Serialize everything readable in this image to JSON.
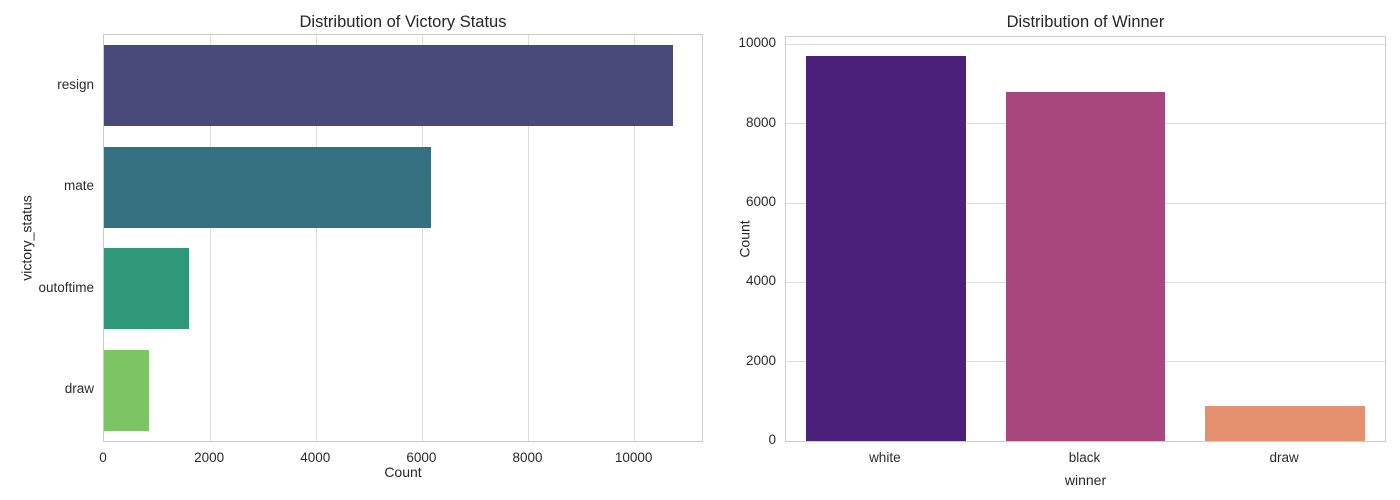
{
  "figure": {
    "background": "#ffffff",
    "grid_color": "#dddddd",
    "spine_color": "#cccccc",
    "text_color": "#262626"
  },
  "chart_data": [
    {
      "type": "bar",
      "orientation": "horizontal",
      "title": "Distribution of Victory Status",
      "xlabel": "Count",
      "ylabel": "victory_status",
      "categories": [
        "resign",
        "mate",
        "outoftime",
        "draw"
      ],
      "values": [
        10730,
        6160,
        1600,
        850
      ],
      "bar_colors": [
        "#4a4a7a",
        "#34707f",
        "#2f9878",
        "#7cc464"
      ],
      "xlim": [
        0,
        11270
      ],
      "xticks": [
        0,
        2000,
        4000,
        6000,
        8000,
        10000
      ],
      "grid": true,
      "legend": false
    },
    {
      "type": "bar",
      "orientation": "vertical",
      "title": "Distribution of Winner",
      "xlabel": "winner",
      "ylabel": "Count",
      "categories": [
        "white",
        "black",
        "draw"
      ],
      "values": [
        9700,
        8810,
        890
      ],
      "bar_colors": [
        "#4b2078",
        "#a8477d",
        "#e5916f"
      ],
      "ylim": [
        0,
        10185
      ],
      "yticks": [
        0,
        2000,
        4000,
        6000,
        8000,
        10000
      ],
      "grid": true,
      "legend": false
    }
  ]
}
